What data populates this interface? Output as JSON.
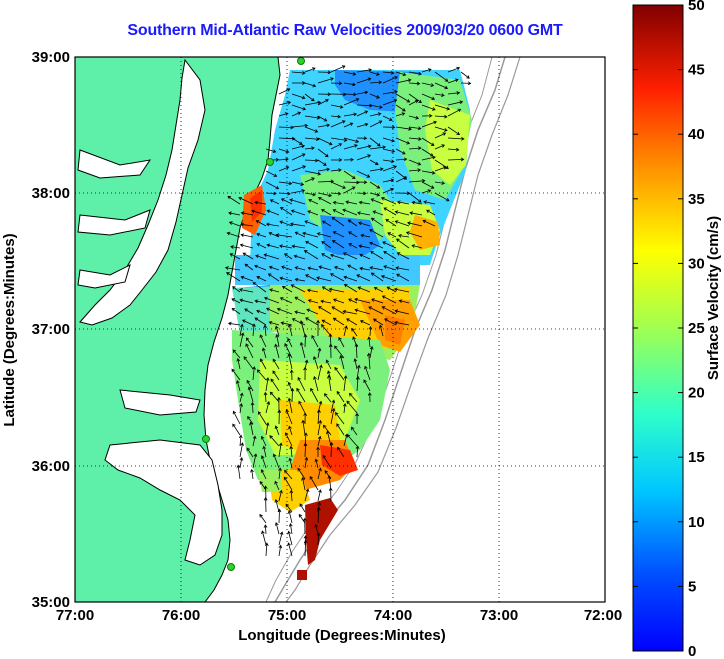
{
  "title": "Southern Mid-Atlantic Raw Velocities 2009/03/20 0600 GMT",
  "map": {
    "xlabel": "Longitude (Degrees:Minutes)",
    "ylabel": "Latitude (Degrees:Minutes)",
    "x_ticks": [
      "77:00",
      "76:00",
      "75:00",
      "74:00",
      "73:00",
      "72:00"
    ],
    "y_ticks": [
      "39:00",
      "38:00",
      "37:00",
      "36:00",
      "35:00"
    ],
    "land_color": "#5ef0a8",
    "grid": "dotted"
  },
  "colorbar": {
    "label": "Surface Velocity (cm/s)",
    "ticks": [
      "50",
      "45",
      "40",
      "35",
      "30",
      "25",
      "20",
      "15",
      "10",
      "5",
      "0"
    ],
    "range": [
      0,
      50
    ],
    "colormap": "jet"
  }
}
